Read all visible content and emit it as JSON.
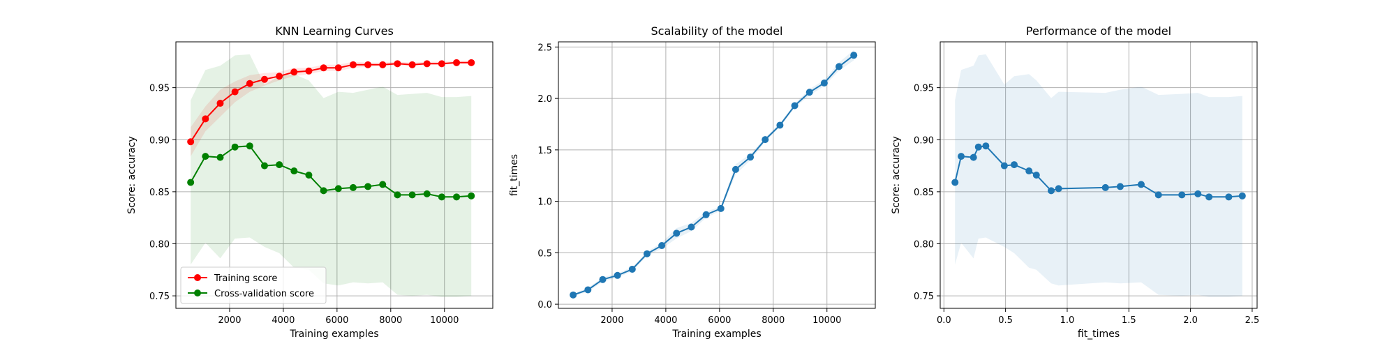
{
  "chart_data": [
    {
      "type": "line",
      "title": "KNN Learning Curves",
      "xlabel": "Training examples",
      "ylabel": "Score: accuracy",
      "xlim": [
        0,
        11800
      ],
      "ylim": [
        0.738,
        0.994
      ],
      "xticks": [
        {
          "value": 2000,
          "label": "2000"
        },
        {
          "value": 4000,
          "label": "4000"
        },
        {
          "value": 6000,
          "label": "6000"
        },
        {
          "value": 8000,
          "label": "8000"
        },
        {
          "value": 10000,
          "label": "10000"
        }
      ],
      "yticks": [
        {
          "value": 0.75,
          "label": "0.75"
        },
        {
          "value": 0.8,
          "label": "0.80"
        },
        {
          "value": 0.85,
          "label": "0.85"
        },
        {
          "value": 0.9,
          "label": "0.90"
        },
        {
          "value": 0.95,
          "label": "0.95"
        }
      ],
      "grid": true,
      "legend_position": "lower-left",
      "x": [
        550,
        1100,
        1650,
        2200,
        2750,
        3300,
        3850,
        4400,
        4950,
        5500,
        6050,
        6600,
        7150,
        7700,
        8250,
        8800,
        9350,
        9900,
        10450,
        11000
      ],
      "series": [
        {
          "name": "Training score",
          "color": "#ff0000",
          "fill_color": "#ff0000",
          "fill_opacity": 0.1,
          "values": [
            0.898,
            0.92,
            0.935,
            0.946,
            0.954,
            0.958,
            0.961,
            0.965,
            0.966,
            0.969,
            0.969,
            0.972,
            0.972,
            0.972,
            0.973,
            0.972,
            0.973,
            0.973,
            0.974,
            0.974
          ],
          "lower": [
            0.884,
            0.908,
            0.922,
            0.936,
            0.946,
            0.952,
            0.957,
            0.961,
            0.963,
            0.966,
            0.966,
            0.969,
            0.97,
            0.971,
            0.971,
            0.971,
            0.972,
            0.972,
            0.973,
            0.973
          ],
          "upper": [
            0.912,
            0.932,
            0.948,
            0.956,
            0.962,
            0.964,
            0.965,
            0.969,
            0.969,
            0.972,
            0.972,
            0.975,
            0.974,
            0.974,
            0.975,
            0.974,
            0.975,
            0.975,
            0.976,
            0.976
          ]
        },
        {
          "name": "Cross-validation score",
          "color": "#008000",
          "fill_color": "#008000",
          "fill_opacity": 0.1,
          "values": [
            0.859,
            0.884,
            0.883,
            0.893,
            0.894,
            0.875,
            0.876,
            0.87,
            0.866,
            0.851,
            0.853,
            0.854,
            0.855,
            0.857,
            0.847,
            0.847,
            0.848,
            0.845,
            0.845,
            0.846
          ],
          "lower": [
            0.78,
            0.801,
            0.786,
            0.805,
            0.806,
            0.797,
            0.791,
            0.777,
            0.775,
            0.762,
            0.76,
            0.763,
            0.762,
            0.763,
            0.751,
            0.75,
            0.751,
            0.749,
            0.749,
            0.75
          ],
          "upper": [
            0.938,
            0.967,
            0.971,
            0.981,
            0.982,
            0.953,
            0.961,
            0.963,
            0.957,
            0.94,
            0.946,
            0.945,
            0.948,
            0.951,
            0.943,
            0.944,
            0.945,
            0.941,
            0.941,
            0.942
          ]
        }
      ]
    },
    {
      "type": "line",
      "title": "Scalability of the model",
      "xlabel": "Training examples",
      "ylabel": "fit_times",
      "xlim": [
        0,
        11800
      ],
      "ylim": [
        -0.04,
        2.55
      ],
      "xticks": [
        {
          "value": 2000,
          "label": "2000"
        },
        {
          "value": 4000,
          "label": "4000"
        },
        {
          "value": 6000,
          "label": "6000"
        },
        {
          "value": 8000,
          "label": "8000"
        },
        {
          "value": 10000,
          "label": "10000"
        }
      ],
      "yticks": [
        {
          "value": 0.0,
          "label": "0.0"
        },
        {
          "value": 0.5,
          "label": "0.5"
        },
        {
          "value": 1.0,
          "label": "1.0"
        },
        {
          "value": 1.5,
          "label": "1.5"
        },
        {
          "value": 2.0,
          "label": "2.0"
        },
        {
          "value": 2.5,
          "label": "2.5"
        }
      ],
      "grid": true,
      "x": [
        550,
        1100,
        1650,
        2200,
        2750,
        3300,
        3850,
        4400,
        4950,
        5500,
        6050,
        6600,
        7150,
        7700,
        8250,
        8800,
        9350,
        9900,
        10450,
        11000
      ],
      "series": [
        {
          "color": "#1f77b4",
          "fill_color": "#1f77b4",
          "fill_opacity": 0.1,
          "values": [
            0.09,
            0.14,
            0.24,
            0.28,
            0.34,
            0.49,
            0.57,
            0.69,
            0.75,
            0.87,
            0.93,
            1.31,
            1.43,
            1.6,
            1.74,
            1.93,
            2.06,
            2.15,
            2.31,
            2.42
          ],
          "lower": [
            0.08,
            0.12,
            0.22,
            0.26,
            0.32,
            0.47,
            0.54,
            0.64,
            0.71,
            0.84,
            0.91,
            1.26,
            1.4,
            1.58,
            1.72,
            1.91,
            2.03,
            2.12,
            2.27,
            2.37
          ],
          "upper": [
            0.1,
            0.16,
            0.26,
            0.3,
            0.36,
            0.51,
            0.6,
            0.74,
            0.79,
            0.9,
            0.95,
            1.36,
            1.46,
            1.62,
            1.76,
            1.95,
            2.09,
            2.18,
            2.35,
            2.47
          ]
        }
      ]
    },
    {
      "type": "line",
      "title": "Performance of the model",
      "xlabel": "fit_times",
      "ylabel": "Score: accuracy",
      "xlim": [
        -0.03,
        2.54
      ],
      "ylim": [
        0.738,
        0.994
      ],
      "xticks": [
        {
          "value": 0.0,
          "label": "0.0"
        },
        {
          "value": 0.5,
          "label": "0.5"
        },
        {
          "value": 1.0,
          "label": "1.0"
        },
        {
          "value": 1.5,
          "label": "1.5"
        },
        {
          "value": 2.0,
          "label": "2.0"
        },
        {
          "value": 2.5,
          "label": "2.5"
        }
      ],
      "yticks": [
        {
          "value": 0.75,
          "label": "0.75"
        },
        {
          "value": 0.8,
          "label": "0.80"
        },
        {
          "value": 0.85,
          "label": "0.85"
        },
        {
          "value": 0.9,
          "label": "0.90"
        },
        {
          "value": 0.95,
          "label": "0.95"
        }
      ],
      "grid": true,
      "x": [
        0.09,
        0.14,
        0.24,
        0.28,
        0.34,
        0.49,
        0.57,
        0.69,
        0.75,
        0.87,
        0.93,
        1.31,
        1.43,
        1.6,
        1.74,
        1.93,
        2.06,
        2.15,
        2.31,
        2.42
      ],
      "series": [
        {
          "color": "#1f77b4",
          "fill_color": "#1f77b4",
          "fill_opacity": 0.1,
          "values": [
            0.859,
            0.884,
            0.883,
            0.893,
            0.894,
            0.875,
            0.876,
            0.87,
            0.866,
            0.851,
            0.853,
            0.854,
            0.855,
            0.857,
            0.847,
            0.847,
            0.848,
            0.845,
            0.845,
            0.846
          ],
          "lower": [
            0.78,
            0.801,
            0.786,
            0.805,
            0.806,
            0.797,
            0.791,
            0.777,
            0.775,
            0.762,
            0.76,
            0.763,
            0.762,
            0.763,
            0.751,
            0.75,
            0.751,
            0.749,
            0.749,
            0.75
          ],
          "upper": [
            0.938,
            0.967,
            0.971,
            0.981,
            0.982,
            0.953,
            0.961,
            0.963,
            0.957,
            0.94,
            0.946,
            0.945,
            0.948,
            0.951,
            0.943,
            0.944,
            0.945,
            0.941,
            0.941,
            0.942
          ]
        }
      ]
    }
  ]
}
